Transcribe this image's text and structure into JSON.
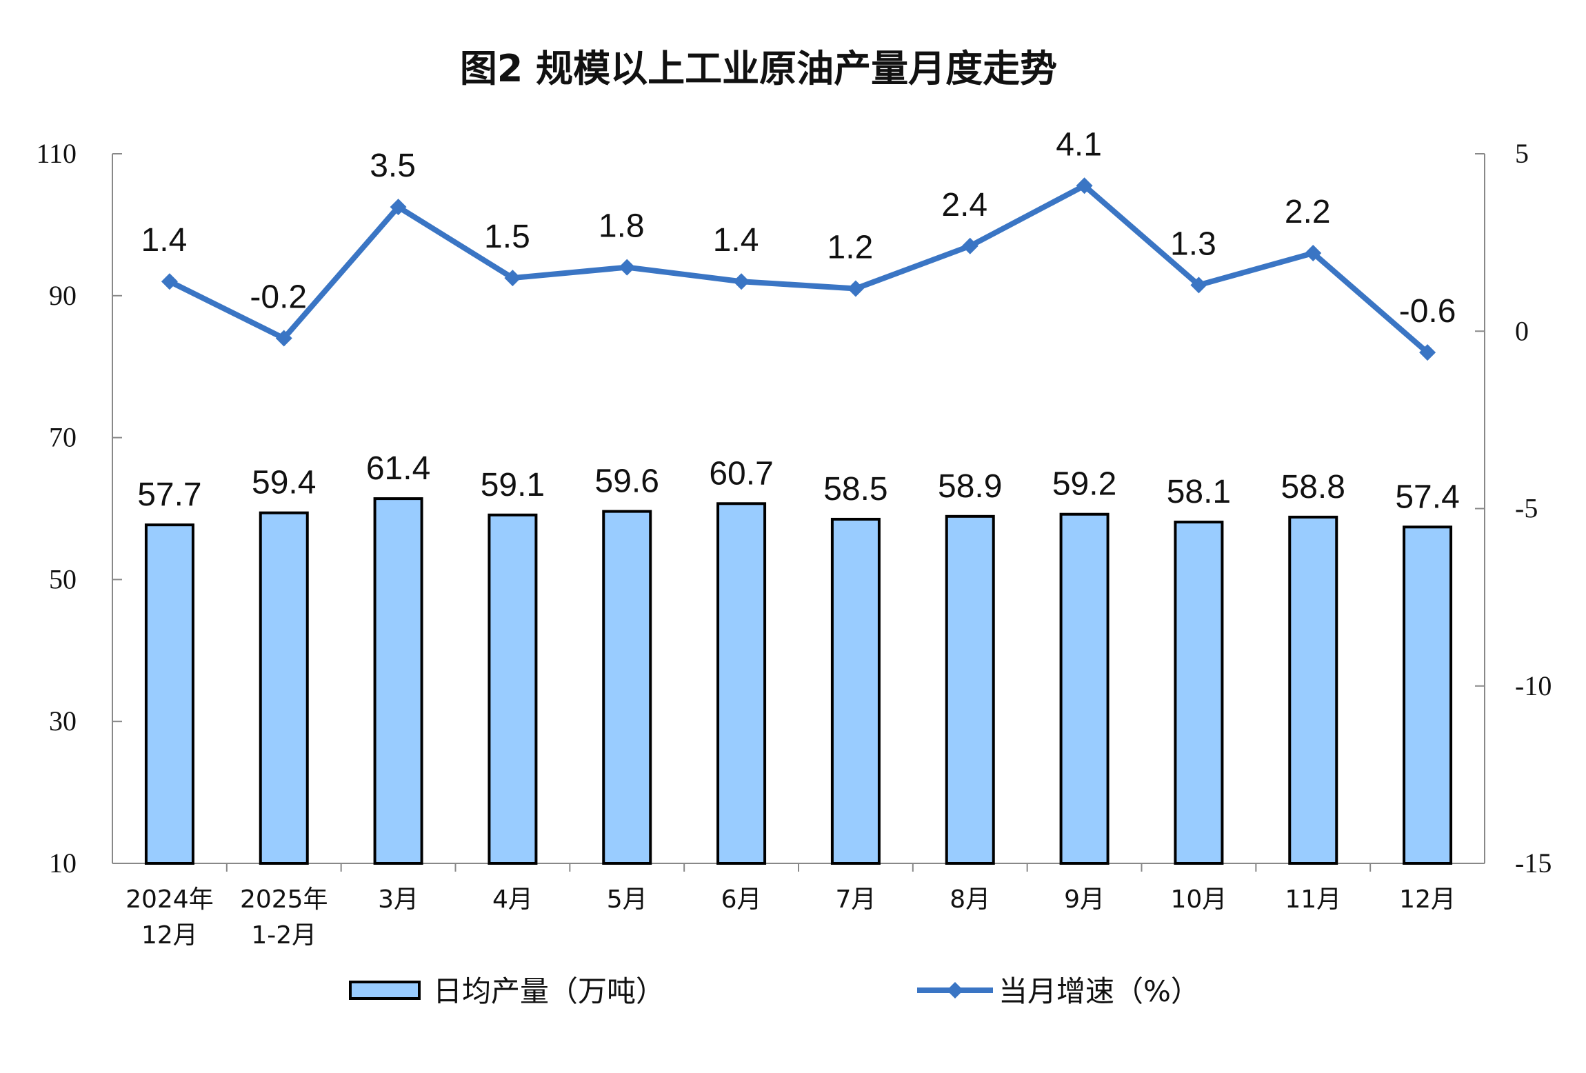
{
  "chart_data": {
    "type": "bar+line",
    "title": "图2  规模以上工业原油产量月度走势",
    "categories": [
      [
        "2024年",
        "12月"
      ],
      [
        "2025年",
        "1-2月"
      ],
      [
        "3月"
      ],
      [
        "4月"
      ],
      [
        "5月"
      ],
      [
        "6月"
      ],
      [
        "7月"
      ],
      [
        "8月"
      ],
      [
        "9月"
      ],
      [
        "10月"
      ],
      [
        "11月"
      ],
      [
        "12月"
      ]
    ],
    "series": [
      {
        "name": "日均产量（万吨）",
        "type": "bar",
        "axis": "left",
        "color": "#99CCFF",
        "values": [
          57.7,
          59.4,
          61.4,
          59.1,
          59.6,
          60.7,
          58.5,
          58.9,
          59.2,
          58.1,
          58.8,
          57.4
        ]
      },
      {
        "name": "当月增速（%）",
        "type": "line",
        "axis": "right",
        "color": "#3A75C4",
        "marker": "diamond",
        "values": [
          1.4,
          -0.2,
          3.5,
          1.5,
          1.8,
          1.4,
          1.2,
          2.4,
          4.1,
          1.3,
          2.2,
          -0.6
        ]
      }
    ],
    "left_axis": {
      "range": [
        10,
        110
      ],
      "ticks": [
        10,
        30,
        50,
        70,
        90,
        110
      ]
    },
    "right_axis": {
      "range": [
        -15,
        5
      ],
      "ticks": [
        -15,
        -10,
        -5,
        0,
        5
      ]
    },
    "grid": false,
    "legend_placement": "bottom"
  }
}
